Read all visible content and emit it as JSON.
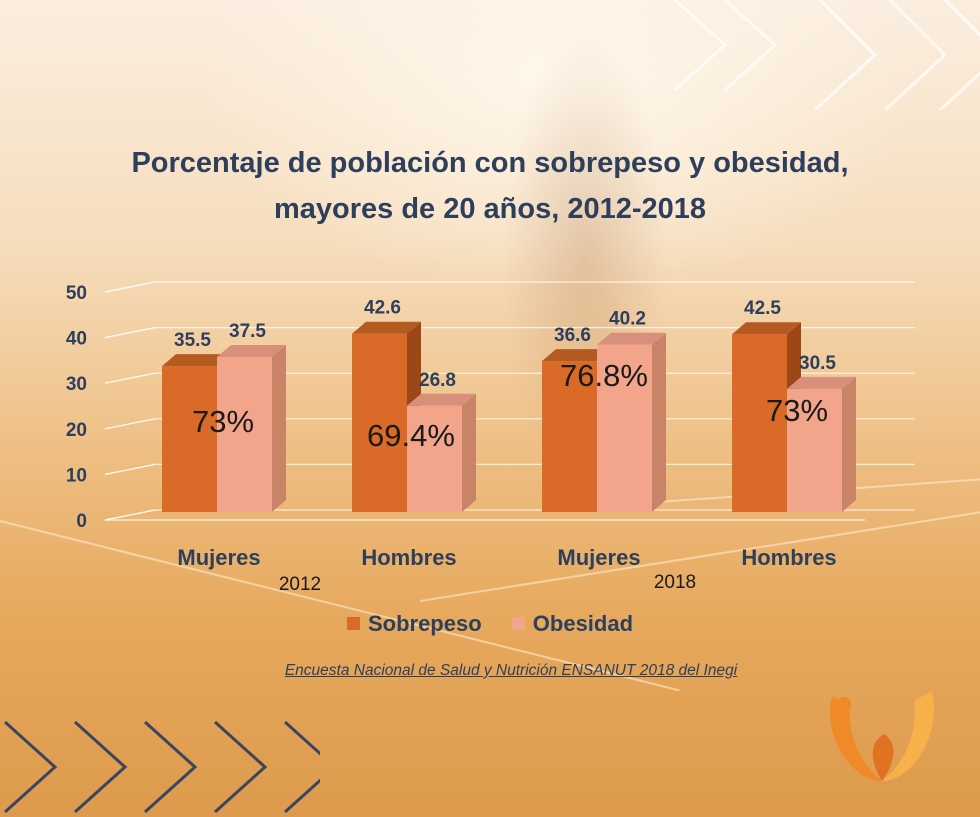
{
  "source_note": "Encuesta Nacional de Salud y Nutrición ENSANUT 2018 del Inegi",
  "colors": {
    "title": "#2e3f5c",
    "sobrepeso": "#d96a28",
    "obesidad": "#f2a58a"
  },
  "chart_data": {
    "type": "bar",
    "title_lines": [
      "Porcentaje de población con sobrepeso y obesidad,",
      "mayores de 20 años, 2012-2018"
    ],
    "groups": [
      {
        "label": "2012",
        "categories": [
          "Mujeres",
          "Hombres"
        ]
      },
      {
        "label": "2018",
        "categories": [
          "Mujeres",
          "Hombres"
        ]
      }
    ],
    "categories": [
      "Mujeres",
      "Hombres",
      "Mujeres",
      "Hombres"
    ],
    "series": [
      {
        "name": "Sobrepeso",
        "values": [
          35.5,
          42.6,
          36.6,
          42.5
        ]
      },
      {
        "name": "Obesidad",
        "values": [
          37.5,
          26.8,
          40.2,
          30.5
        ]
      }
    ],
    "totals": [
      "73%",
      "69.4%",
      "76.8%",
      "73%"
    ],
    "ylim": [
      0,
      50
    ],
    "yticks": [
      0,
      10,
      20,
      30,
      40,
      50
    ],
    "grid": true,
    "legend_position": "bottom"
  }
}
